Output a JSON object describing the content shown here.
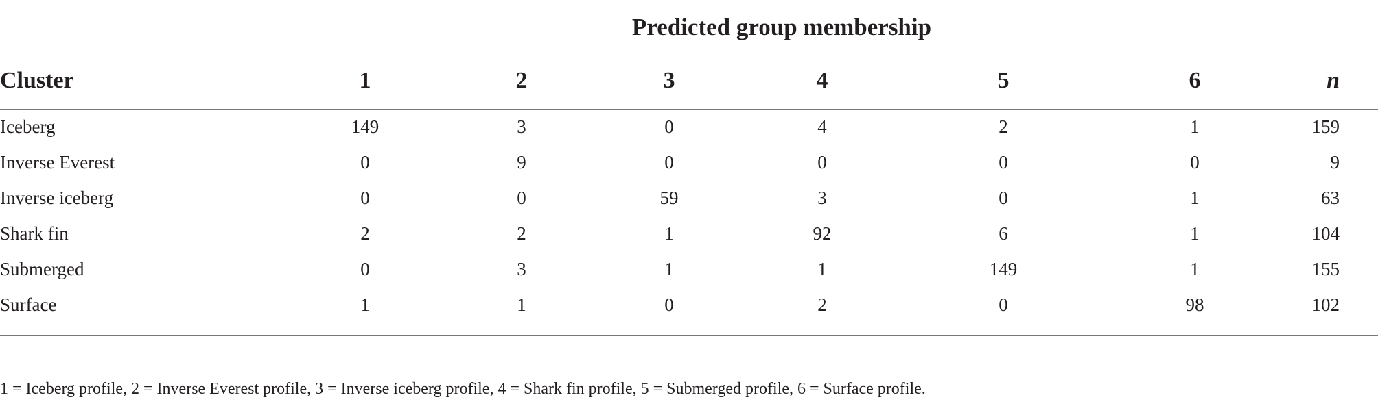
{
  "table": {
    "group_header": "Predicted group membership",
    "headers": {
      "cluster": "Cluster",
      "c1": "1",
      "c2": "2",
      "c3": "3",
      "c4": "4",
      "c5": "5",
      "c6": "6",
      "n": "n"
    },
    "rows": [
      {
        "label": "Iceberg",
        "c1": "149",
        "c2": "3",
        "c3": "0",
        "c4": "4",
        "c5": "2",
        "c6": "1",
        "n": "159"
      },
      {
        "label": "Inverse Everest",
        "c1": "0",
        "c2": "9",
        "c3": "0",
        "c4": "0",
        "c5": "0",
        "c6": "0",
        "n": "9"
      },
      {
        "label": "Inverse iceberg",
        "c1": "0",
        "c2": "0",
        "c3": "59",
        "c4": "3",
        "c5": "0",
        "c6": "1",
        "n": "63"
      },
      {
        "label": "Shark fin",
        "c1": "2",
        "c2": "2",
        "c3": "1",
        "c4": "92",
        "c5": "6",
        "c6": "1",
        "n": "104"
      },
      {
        "label": "Submerged",
        "c1": "0",
        "c2": "3",
        "c3": "1",
        "c4": "1",
        "c5": "149",
        "c6": "1",
        "n": "155"
      },
      {
        "label": "Surface",
        "c1": "1",
        "c2": "1",
        "c3": "0",
        "c4": "2",
        "c5": "0",
        "c6": "98",
        "n": "102"
      }
    ],
    "footnote": "1 = Iceberg profile, 2 = Inverse Everest profile, 3 = Inverse iceberg profile, 4 = Shark fin profile, 5 = Submerged profile, 6 = Surface profile."
  }
}
